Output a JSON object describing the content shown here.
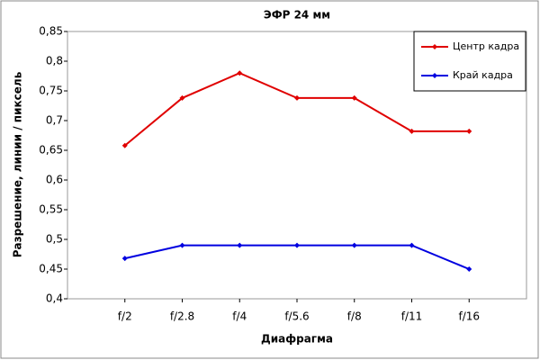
{
  "chart_data": {
    "type": "line",
    "title": "ЭФР 24 мм",
    "x_label": "Диафрагма",
    "y_label": "Разрешение, линии / пиксель",
    "categories": [
      "f/2",
      "f/2.8",
      "f/4",
      "f/5.6",
      "f/8",
      "f/11",
      "f/16"
    ],
    "series": [
      {
        "name": "Центр кадра",
        "color": "#e00000",
        "values": [
          0.658,
          0.738,
          0.78,
          0.738,
          0.738,
          0.682,
          0.682
        ]
      },
      {
        "name": "Край кадра",
        "color": "#0000e0",
        "values": [
          0.468,
          0.49,
          0.49,
          0.49,
          0.49,
          0.49,
          0.45
        ]
      }
    ],
    "ylim": [
      0.4,
      0.85
    ],
    "yticks": [
      {
        "value": 0.4,
        "label": "0,4"
      },
      {
        "value": 0.45,
        "label": "0,45"
      },
      {
        "value": 0.5,
        "label": "0,5"
      },
      {
        "value": 0.55,
        "label": "0,55"
      },
      {
        "value": 0.6,
        "label": "0,6"
      },
      {
        "value": 0.65,
        "label": "0,65"
      },
      {
        "value": 0.7,
        "label": "0,7"
      },
      {
        "value": 0.75,
        "label": "0,75"
      },
      {
        "value": 0.8,
        "label": "0,8"
      },
      {
        "value": 0.85,
        "label": "0,85"
      }
    ],
    "grid": false,
    "legend": "top-right"
  }
}
